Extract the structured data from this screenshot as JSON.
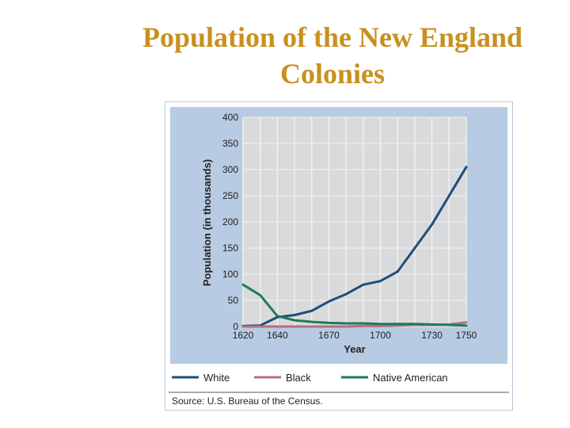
{
  "slide": {
    "title_line1": "Population of the New England",
    "title_line2": "Colonies"
  },
  "source": "Source: U.S. Bureau of the Census.",
  "colors": {
    "panel": "#b7cbe3",
    "plot": "#d9dadc",
    "grid": "#f2f2f2",
    "white_series": "#1d4e7c",
    "black_series": "#b5707c",
    "native_series": "#1f7a5a"
  },
  "chart_data": {
    "type": "line",
    "title": "",
    "xlabel": "Year",
    "ylabel": "Population (in thousands)",
    "xlim": [
      1620,
      1750
    ],
    "ylim": [
      0,
      400
    ],
    "x_ticks": [
      1620,
      1640,
      1670,
      1700,
      1730,
      1750
    ],
    "x_tick_labels": [
      "1620",
      "1640",
      "1670",
      "1700",
      "1730",
      "1750"
    ],
    "y_ticks": [
      0,
      50,
      100,
      150,
      200,
      250,
      300,
      350,
      400
    ],
    "y_tick_labels": [
      "0",
      "50",
      "100",
      "150",
      "200",
      "250",
      "300",
      "350",
      "400"
    ],
    "legend_position": "bottom",
    "grid": true,
    "series": [
      {
        "name": "White",
        "x": [
          1620,
          1630,
          1640,
          1650,
          1660,
          1670,
          1680,
          1690,
          1700,
          1710,
          1720,
          1730,
          1740,
          1750
        ],
        "values": [
          1,
          2,
          18,
          22,
          30,
          48,
          62,
          80,
          87,
          105,
          150,
          195,
          250,
          305
        ]
      },
      {
        "name": "Black",
        "x": [
          1620,
          1630,
          1640,
          1650,
          1660,
          1670,
          1680,
          1690,
          1700,
          1710,
          1720,
          1730,
          1740,
          1750
        ],
        "values": [
          0,
          0,
          0,
          0,
          0,
          0,
          0,
          1,
          1,
          2,
          3,
          3,
          4,
          8
        ]
      },
      {
        "name": "Native American",
        "x": [
          1620,
          1630,
          1640,
          1650,
          1660,
          1670,
          1680,
          1690,
          1700,
          1710,
          1720,
          1730,
          1740,
          1750
        ],
        "values": [
          80,
          60,
          20,
          12,
          9,
          7,
          6,
          6,
          5,
          5,
          5,
          4,
          3,
          2
        ]
      }
    ]
  }
}
